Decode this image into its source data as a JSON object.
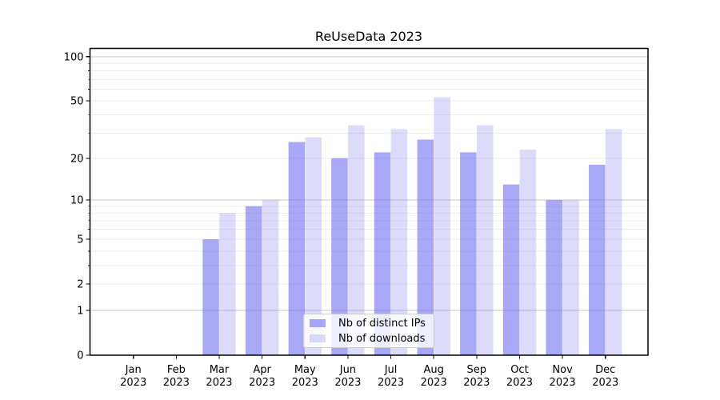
{
  "chart_data": {
    "type": "bar",
    "title": "ReUseData 2023",
    "x": {
      "months": [
        "Jan",
        "Feb",
        "Mar",
        "Apr",
        "May",
        "Jun",
        "Jul",
        "Aug",
        "Sep",
        "Oct",
        "Nov",
        "Dec"
      ],
      "year_label": "2023"
    },
    "y": {
      "scale": "log1p",
      "labeled_ticks": [
        0,
        1,
        2,
        5,
        10,
        20,
        50,
        100
      ],
      "major_ticks": [
        1,
        10,
        100
      ],
      "minor_ticks": [
        2,
        3,
        4,
        5,
        6,
        7,
        8,
        9,
        20,
        30,
        40,
        50,
        60,
        70,
        80,
        90
      ],
      "ylim": [
        0,
        114
      ],
      "grid": true
    },
    "series": [
      {
        "name": "Nb of distinct IPs",
        "color": "rgba(110,110,242,0.60)",
        "values": [
          0,
          0,
          5,
          9,
          26,
          20,
          22,
          27,
          22,
          13,
          10,
          18
        ]
      },
      {
        "name": "Nb of downloads",
        "color": "rgba(150,150,240,0.33)",
        "values": [
          0,
          0,
          8,
          10,
          28,
          34,
          32,
          53,
          34,
          23,
          10,
          32
        ]
      }
    ],
    "legend": {
      "position": "lower center",
      "entries": [
        "Nb of distinct IPs",
        "Nb of downloads"
      ]
    }
  }
}
